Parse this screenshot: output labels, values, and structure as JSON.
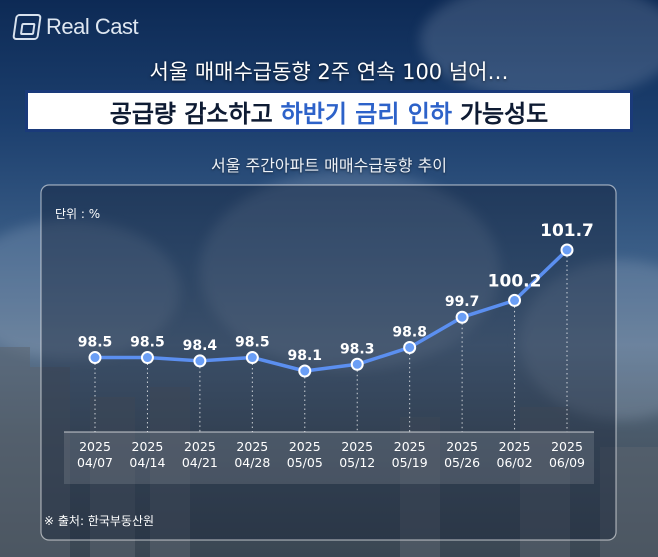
{
  "brand": {
    "logo_text": "Real Cast"
  },
  "headline": "서울 매매수급동향 2주 연속 100 넘어…",
  "banner": {
    "part1": "공급량 감소하고",
    "part2": "하반기 금리 인하",
    "part3": "가능성도"
  },
  "colors": {
    "line": "#5b8ff0",
    "point": "#6a9ef5",
    "banner_accent": "#2d62c9",
    "banner_border": "#1a3a7a"
  },
  "chart_data": {
    "type": "line",
    "title": "서울 주간아파트 매매수급동향 추이",
    "unit_label": "단위 : %",
    "categories": [
      "2025\n04/07",
      "2025\n04/14",
      "2025\n04/21",
      "2025\n04/28",
      "2025\n05/05",
      "2025\n05/12",
      "2025\n05/19",
      "2025\n05/26",
      "2025\n06/02",
      "2025\n06/09"
    ],
    "series": [
      {
        "values": [
          98.5,
          98.5,
          98.4,
          98.5,
          98.1,
          98.3,
          98.8,
          99.7,
          100.2,
          101.7
        ]
      }
    ],
    "value_labels": [
      "98.5",
      "98.5",
      "98.4",
      "98.5",
      "98.1",
      "98.3",
      "98.8",
      "99.7",
      "100.2",
      "101.7"
    ],
    "grid": false,
    "legend": "none"
  },
  "source": "※ 출처: 한국부동산원"
}
